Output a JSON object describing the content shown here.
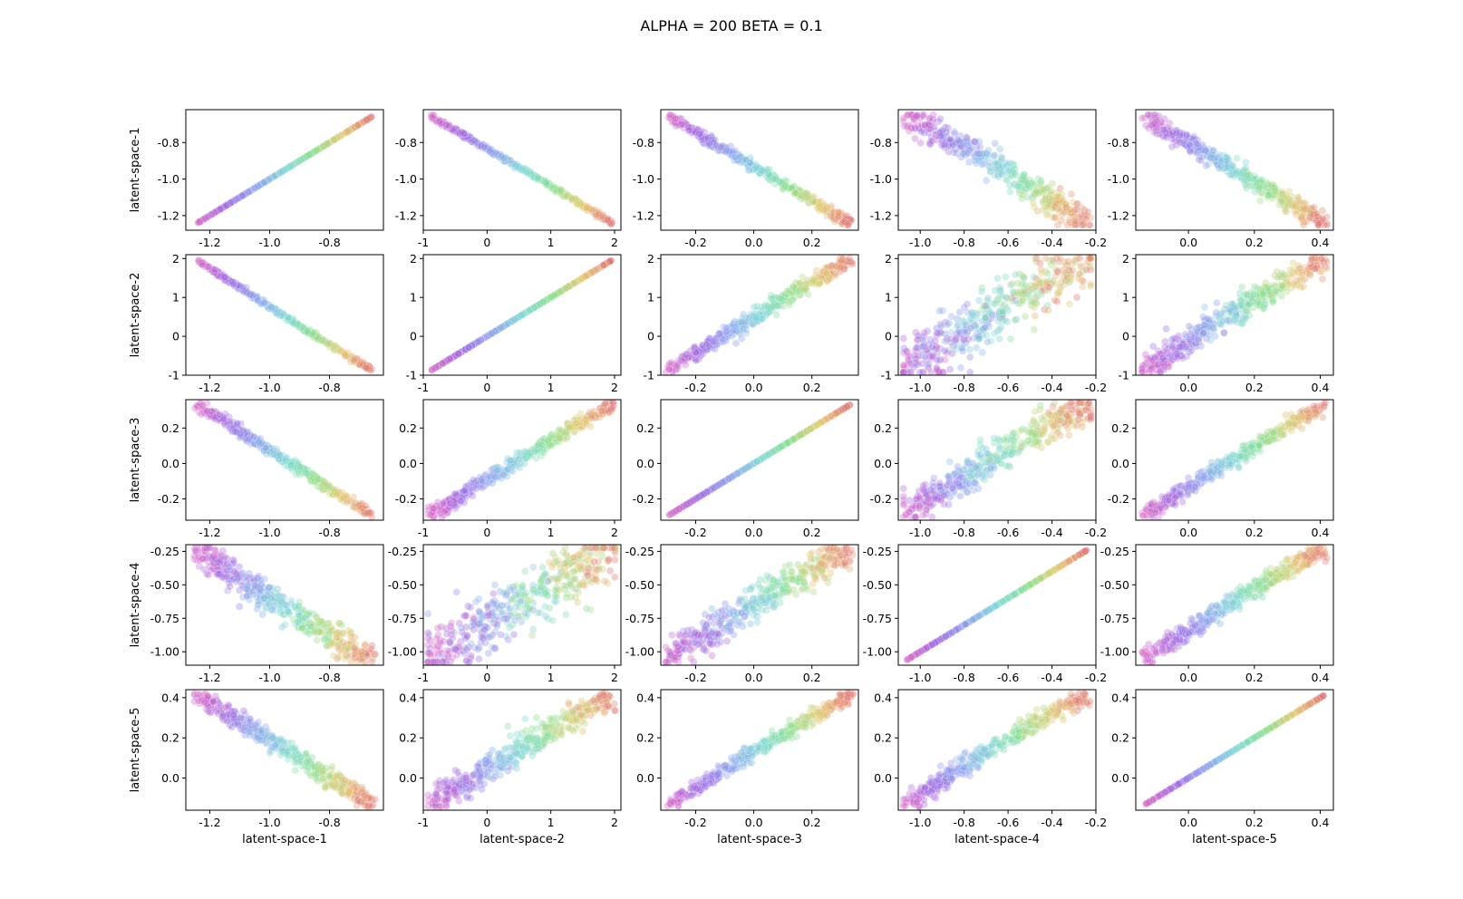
{
  "figure": {
    "title": "ALPHA = 200  BETA = 0.1"
  },
  "chart_data": {
    "type": "scatter",
    "title": "ALPHA = 200  BETA = 0.1",
    "grid": false,
    "legend": "none",
    "variables": [
      "latent-space-1",
      "latent-space-2",
      "latent-space-3",
      "latent-space-4",
      "latent-space-5"
    ],
    "ranges": [
      [
        -1.24,
        -0.66
      ],
      [
        -0.87,
        1.95
      ],
      [
        -0.29,
        0.33
      ],
      [
        -1.06,
        -0.24
      ],
      [
        -0.13,
        0.41
      ]
    ],
    "axis_limits": [
      [
        -1.28,
        -0.62
      ],
      [
        -1.0,
        2.1
      ],
      [
        -0.32,
        0.36
      ],
      [
        -1.1,
        -0.2
      ],
      [
        -0.16,
        0.44
      ]
    ],
    "ticks": [
      [
        -1.2,
        -1.0,
        -0.8
      ],
      [
        -1,
        0,
        1,
        2
      ],
      [
        -0.2,
        0.0,
        0.2
      ],
      [
        -1.0,
        -0.8,
        -0.6,
        -0.4,
        -0.2
      ],
      [
        0.0,
        0.2,
        0.4
      ]
    ],
    "tick_labels": [
      [
        "-1.2",
        "-1.0",
        "-0.8"
      ],
      [
        "-1",
        "0",
        "1",
        "2"
      ],
      [
        "-0.2",
        "0.0",
        "0.2"
      ],
      [
        "-1.0",
        "-0.8",
        "-0.6",
        "-0.4",
        "-0.2"
      ],
      [
        "0.0",
        "0.2",
        "0.4"
      ]
    ],
    "y_ticks": [
      [
        -1.2,
        -1.0,
        -0.8
      ],
      [
        -1,
        0,
        1,
        2
      ],
      [
        -0.2,
        0.0,
        0.2
      ],
      [
        -1.0,
        -0.75,
        -0.5,
        -0.25
      ],
      [
        0.0,
        0.2,
        0.4
      ]
    ],
    "y_tick_labels": [
      [
        "-1.2",
        "-1.0",
        "-0.8"
      ],
      [
        "-1",
        "0",
        "1",
        "2"
      ],
      [
        "-0.2",
        "0.0",
        "0.2"
      ],
      [
        "-1.00",
        "-0.75",
        "-0.50",
        "-0.25"
      ],
      [
        "0.0",
        "0.2",
        "0.4"
      ]
    ],
    "correlation_sign": [
      [
        1,
        -1,
        -1,
        -1,
        -1
      ],
      [
        -1,
        1,
        1,
        1,
        1
      ],
      [
        -1,
        1,
        1,
        1,
        1
      ],
      [
        -1,
        1,
        1,
        1,
        1
      ],
      [
        -1,
        1,
        1,
        1,
        1
      ]
    ],
    "curvature": [
      0,
      0.12,
      0.05,
      0.35,
      0.1
    ],
    "spread": [
      [
        0,
        0.01,
        0.02,
        0.06,
        0.04
      ],
      [
        0.01,
        0,
        0.03,
        0.12,
        0.06
      ],
      [
        0.02,
        0.03,
        0,
        0.07,
        0.03
      ],
      [
        0.06,
        0.12,
        0.07,
        0,
        0.04
      ],
      [
        0.04,
        0.06,
        0.03,
        0.04,
        0
      ]
    ],
    "color_map": [
      "#e07070",
      "#e3c86a",
      "#86e08a",
      "#7ad6d8",
      "#8aa0ee",
      "#9f66e3",
      "#d868c8"
    ],
    "marker_alpha": 0.35,
    "points_per_panel": 420
  }
}
